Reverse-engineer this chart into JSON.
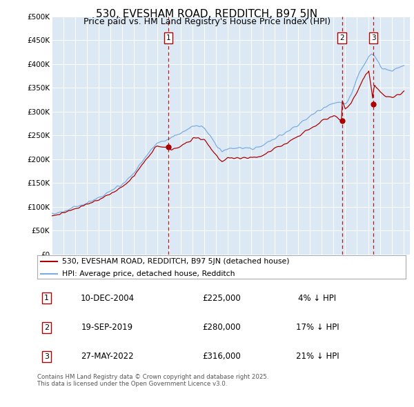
{
  "title": "530, EVESHAM ROAD, REDDITCH, B97 5JN",
  "subtitle": "Price paid vs. HM Land Registry's House Price Index (HPI)",
  "background_color": "#dce9f5",
  "plot_bg_color": "#dce9f5",
  "ylabel_ticks": [
    "£0",
    "£50K",
    "£100K",
    "£150K",
    "£200K",
    "£250K",
    "£300K",
    "£350K",
    "£400K",
    "£450K",
    "£500K"
  ],
  "ylim": [
    0,
    500000
  ],
  "xlim_start": 1995.0,
  "xlim_end": 2025.5,
  "hpi_color": "#7aace0",
  "price_color": "#aa0000",
  "transactions": [
    {
      "label": "1",
      "date_num": 2004.94,
      "price": 225000,
      "note": "10-DEC-2004",
      "amount": "£225,000",
      "vs_hpi": "4% ↓ HPI"
    },
    {
      "label": "2",
      "date_num": 2019.72,
      "price": 280000,
      "note": "19-SEP-2019",
      "amount": "£280,000",
      "vs_hpi": "17% ↓ HPI"
    },
    {
      "label": "3",
      "date_num": 2022.4,
      "price": 316000,
      "note": "27-MAY-2022",
      "amount": "£316,000",
      "vs_hpi": "21% ↓ HPI"
    }
  ],
  "legend_entries": [
    "530, EVESHAM ROAD, REDDITCH, B97 5JN (detached house)",
    "HPI: Average price, detached house, Redditch"
  ],
  "footer": "Contains HM Land Registry data © Crown copyright and database right 2025.\nThis data is licensed under the Open Government Licence v3.0."
}
